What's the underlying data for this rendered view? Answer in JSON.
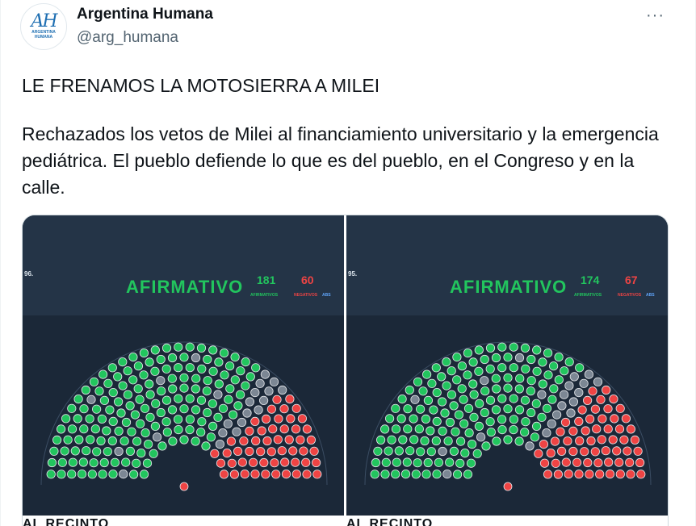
{
  "author": {
    "display_name": "Argentina Humana",
    "handle": "@arg_humana",
    "avatar_monogram": "AH",
    "avatar_subtext_line1": "ARGENTINA",
    "avatar_subtext_line2": "HUMANA"
  },
  "menu_label": "···",
  "tweet": {
    "line1": "LE FRENAMOS LA MOTOSIERRA A MILEI",
    "line2": "Rechazados los vetos de Milei al financiamiento universitario y la emergencia pediátrica. El pueblo defiende lo que es del pueblo, en el Congreso y en la calle."
  },
  "media": [
    {
      "corner_text": "96.",
      "result_label": "AFIRMATIVO",
      "afirmativos": "181",
      "negativos": "60",
      "afirmativos_label": "AFIRMATIVOS",
      "negativos_label": "NEGATIVOS",
      "abstenciones_label": "ABS",
      "footer_text": "AL RECINTO",
      "seat_split": {
        "afirmativos": 181,
        "negativos": 60
      }
    },
    {
      "corner_text": "95.",
      "result_label": "AFIRMATIVO",
      "afirmativos": "174",
      "negativos": "67",
      "afirmativos_label": "AFIRMATIVOS",
      "negativos_label": "NEGATIVOS",
      "abstenciones_label": "ABS",
      "footer_text": "AL RECINTO",
      "seat_split": {
        "afirmativos": 174,
        "negativos": 67
      }
    }
  ],
  "colors": {
    "afirmativo": "#22c55e",
    "negativo": "#ef4444",
    "ausente": "#7c8794",
    "panel_bg": "#1b2838",
    "panel_header": "#243447"
  }
}
